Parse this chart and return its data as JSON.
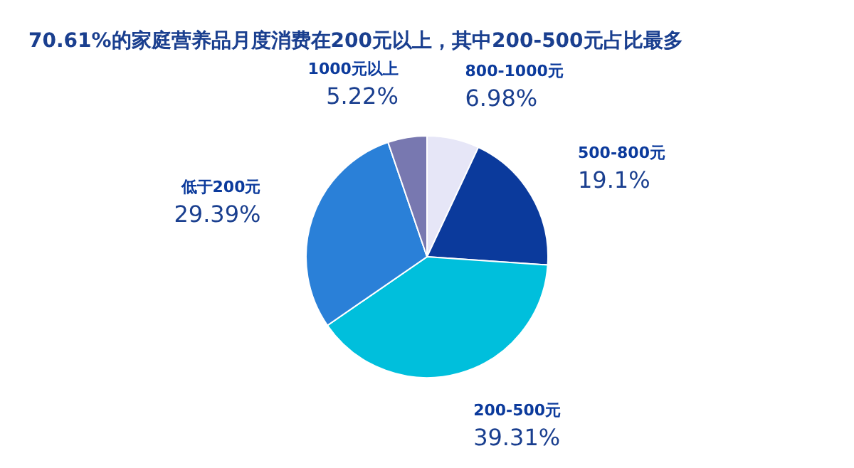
{
  "chart_data": {
    "type": "pie",
    "title": "70.61%的家庭营养品月度消费在200元以上，其中200-500元占比最多",
    "categories": [
      "800-1000元",
      "500-800元",
      "200-500元",
      "低于200元",
      "1000元以上"
    ],
    "values": [
      6.98,
      19.1,
      39.31,
      29.39,
      5.22
    ],
    "value_labels": [
      "6.98%",
      "19.1%",
      "39.31%",
      "29.39%",
      "5.22%"
    ],
    "colors": [
      "#e6e6f7",
      "#0b3a9c",
      "#00bfdc",
      "#2a80d8",
      "#7878b0"
    ],
    "legend": false
  }
}
